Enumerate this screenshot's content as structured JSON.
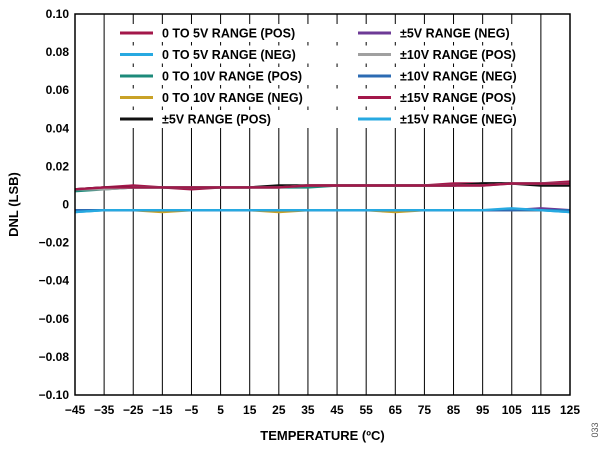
{
  "chart_data": {
    "type": "line",
    "title": "",
    "xlabel": "TEMPERATURE (ºC)",
    "ylabel": "DNL (LSB)",
    "xlim": [
      -45,
      125
    ],
    "ylim": [
      -0.1,
      0.1
    ],
    "x_ticks": [
      "−45",
      "−35",
      "−25",
      "−15",
      "−5",
      "5",
      "15",
      "25",
      "35",
      "45",
      "55",
      "65",
      "75",
      "85",
      "95",
      "105",
      "115",
      "125"
    ],
    "y_ticks": [
      "0.10",
      "0.08",
      "0.06",
      "0.04",
      "0.02",
      "0",
      "−0.02",
      "−0.04",
      "−0.06",
      "−0.08",
      "−0.10"
    ],
    "grid": "vertical",
    "legend_position": "top",
    "figure_id": "033",
    "x": [
      -45,
      -35,
      -25,
      -15,
      -5,
      5,
      15,
      25,
      35,
      45,
      55,
      65,
      75,
      85,
      95,
      105,
      115,
      125
    ],
    "series": [
      {
        "name": "0 TO 5V RANGE (POS)",
        "color": "#a3174a",
        "values": [
          0.008,
          0.009,
          0.01,
          0.009,
          0.008,
          0.009,
          0.009,
          0.009,
          0.01,
          0.01,
          0.01,
          0.01,
          0.01,
          0.011,
          0.011,
          0.011,
          0.011,
          0.012
        ]
      },
      {
        "name": "0 TO 5V RANGE (NEG)",
        "color": "#27a9e1",
        "values": [
          -0.004,
          -0.003,
          -0.003,
          -0.003,
          -0.003,
          -0.003,
          -0.003,
          -0.003,
          -0.003,
          -0.003,
          -0.003,
          -0.003,
          -0.003,
          -0.003,
          -0.003,
          -0.003,
          -0.003,
          -0.004
        ]
      },
      {
        "name": "0 TO 10V RANGE (POS)",
        "color": "#1d8a7a",
        "values": [
          0.007,
          0.008,
          0.009,
          0.009,
          0.009,
          0.009,
          0.009,
          0.009,
          0.009,
          0.01,
          0.01,
          0.01,
          0.01,
          0.01,
          0.011,
          0.011,
          0.011,
          0.011
        ]
      },
      {
        "name": "0 TO 10V RANGE (NEG)",
        "color": "#c9a227",
        "values": [
          -0.003,
          -0.003,
          -0.003,
          -0.004,
          -0.003,
          -0.003,
          -0.003,
          -0.004,
          -0.003,
          -0.003,
          -0.003,
          -0.004,
          -0.003,
          -0.003,
          -0.003,
          -0.003,
          -0.003,
          -0.003
        ]
      },
      {
        "name": "±5V RANGE (POS)",
        "color": "#111111",
        "values": [
          0.008,
          0.009,
          0.009,
          0.009,
          0.009,
          0.009,
          0.009,
          0.01,
          0.01,
          0.01,
          0.01,
          0.01,
          0.01,
          0.01,
          0.011,
          0.011,
          0.01,
          0.01
        ]
      },
      {
        "name": "±5V RANGE (NEG)",
        "color": "#6d3a96",
        "values": [
          -0.003,
          -0.003,
          -0.003,
          -0.003,
          -0.003,
          -0.003,
          -0.003,
          -0.003,
          -0.003,
          -0.003,
          -0.003,
          -0.003,
          -0.003,
          -0.003,
          -0.003,
          -0.003,
          -0.002,
          -0.003
        ]
      },
      {
        "name": "±10V RANGE (POS)",
        "color": "#a0a0a0",
        "values": [
          0.008,
          0.008,
          0.009,
          0.009,
          0.009,
          0.009,
          0.009,
          0.009,
          0.01,
          0.01,
          0.01,
          0.01,
          0.01,
          0.01,
          0.01,
          0.011,
          0.011,
          0.011
        ]
      },
      {
        "name": "±10V RANGE (NEG)",
        "color": "#2c6bb3",
        "values": [
          -0.003,
          -0.003,
          -0.003,
          -0.003,
          -0.003,
          -0.003,
          -0.003,
          -0.003,
          -0.003,
          -0.003,
          -0.003,
          -0.003,
          -0.003,
          -0.003,
          -0.003,
          -0.003,
          -0.003,
          -0.003
        ]
      },
      {
        "name": "±15V RANGE (POS)",
        "color": "#a3174a",
        "values": [
          0.008,
          0.009,
          0.009,
          0.009,
          0.009,
          0.009,
          0.009,
          0.009,
          0.01,
          0.01,
          0.01,
          0.01,
          0.01,
          0.01,
          0.01,
          0.011,
          0.011,
          0.011
        ]
      },
      {
        "name": "±15V RANGE (NEG)",
        "color": "#27a9e1",
        "values": [
          -0.004,
          -0.003,
          -0.003,
          -0.003,
          -0.003,
          -0.003,
          -0.003,
          -0.003,
          -0.003,
          -0.003,
          -0.003,
          -0.003,
          -0.003,
          -0.003,
          -0.003,
          -0.002,
          -0.003,
          -0.004
        ]
      }
    ]
  }
}
